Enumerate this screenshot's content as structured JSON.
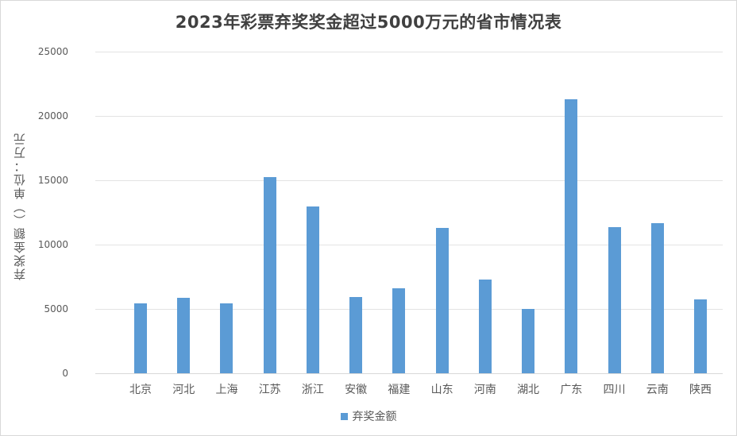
{
  "chart_data": {
    "type": "bar",
    "title": "2023年彩票弃奖奖金超过5000万元的省市情况表",
    "xlabel": "",
    "ylabel": "弃奖金额（）单位：万元",
    "ylim": [
      0,
      25000
    ],
    "yticks": [
      0,
      5000,
      10000,
      15000,
      20000,
      25000
    ],
    "grid": true,
    "legend_position": "bottom",
    "categories": [
      "北京",
      "河北",
      "上海",
      "江苏",
      "浙江",
      "安徽",
      "福建",
      "山东",
      "河南",
      "湖北",
      "广东",
      "四川",
      "云南",
      "陕西"
    ],
    "series": [
      {
        "name": "弃奖金额",
        "color": "#5b9bd5",
        "values": [
          5430,
          5860,
          5430,
          15250,
          12960,
          5930,
          6600,
          11300,
          7280,
          5000,
          21300,
          11360,
          11670,
          5740
        ]
      }
    ]
  },
  "ytick_labels": [
    "0",
    "5000",
    "10000",
    "15000",
    "20000",
    "25000"
  ],
  "legend": {
    "label": "弃奖金额"
  }
}
